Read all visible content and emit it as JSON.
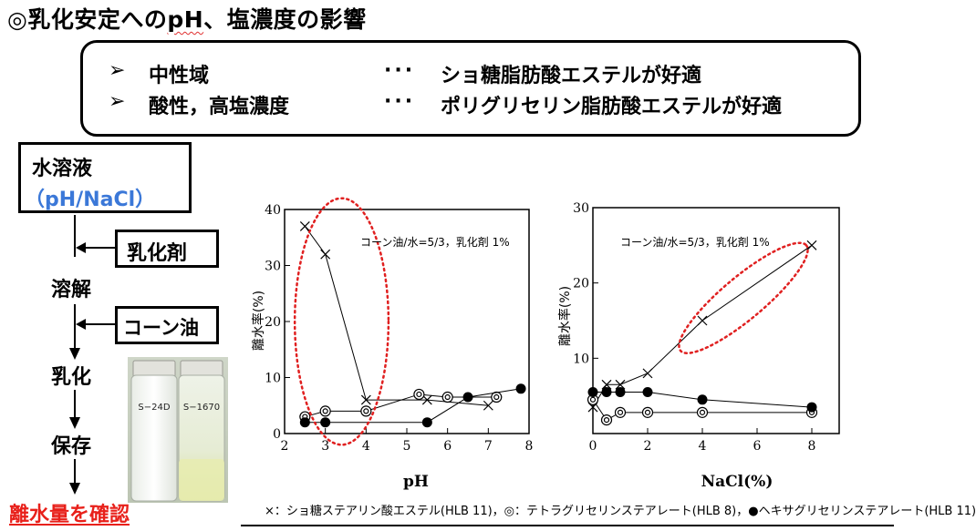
{
  "title": {
    "prefix": "◎乳化安定への",
    "ph": "pH",
    "suffix": "、塩濃度の影響"
  },
  "summary": {
    "rows": [
      {
        "bullet": "➢",
        "condition": "中性域",
        "dots": "···",
        "result": "ショ糖脂肪酸エステルが好適"
      },
      {
        "bullet": "➢",
        "condition": "酸性，高塩濃度",
        "dots": "···",
        "result": "ポリグリセリン脂肪酸エステルが好適"
      }
    ]
  },
  "flow": {
    "start_line1": "水溶液",
    "start_line2": "（pH/NaCl）",
    "emulsifier_label": "乳化剤",
    "oil_label": "コーン油",
    "steps": [
      "溶解",
      "乳化",
      "保存"
    ],
    "final": "離水量を確認",
    "vial_labels": [
      "S−24D",
      "S−1670"
    ]
  },
  "colors": {
    "accent_blue": "#3b78d8",
    "final_red": "#e8201a",
    "highlight_red": "#e02020"
  },
  "chart_data": [
    {
      "type": "line",
      "xlabel": "pH",
      "ylabel": "離水率(%)",
      "annotation": "コーン油/水=5/3，乳化剤 1%",
      "xlim": [
        2,
        8
      ],
      "ylim": [
        0,
        40
      ],
      "xticks": [
        2,
        3,
        4,
        5,
        6,
        7,
        8
      ],
      "yticks": [
        0,
        10,
        20,
        30,
        40
      ],
      "series": [
        {
          "marker": "cross",
          "x": [
            2.5,
            3,
            4,
            5.5,
            7
          ],
          "y": [
            37,
            32,
            6,
            6,
            5
          ]
        },
        {
          "marker": "double-circle",
          "x": [
            2.5,
            3,
            4,
            5.3,
            6,
            7.2
          ],
          "y": [
            3,
            4,
            4,
            7,
            6.5,
            6.5
          ]
        },
        {
          "marker": "filled-circle",
          "x": [
            2.5,
            3,
            5.5,
            6.5,
            7.8
          ],
          "y": [
            2,
            2,
            2,
            6.5,
            8
          ]
        }
      ],
      "highlight": {
        "cx": 3.4,
        "cy": 20,
        "rx": 1.15,
        "ry": 22
      }
    },
    {
      "type": "line",
      "xlabel": "NaCl(%)",
      "ylabel": "離水率(%)",
      "annotation": "コーン油/水=5/3，乳化剤 1%",
      "xlim": [
        0,
        9
      ],
      "ylim": [
        0,
        30
      ],
      "xticks": [
        0,
        2,
        4,
        6,
        8
      ],
      "yticks": [
        10,
        20,
        30
      ],
      "series": [
        {
          "marker": "cross",
          "x": [
            0,
            0.5,
            1,
            2,
            4,
            8
          ],
          "y": [
            3.5,
            6.5,
            6.5,
            8,
            15,
            25
          ]
        },
        {
          "marker": "double-circle",
          "x": [
            0,
            0.5,
            1,
            2,
            4,
            8
          ],
          "y": [
            4.5,
            1.8,
            2.8,
            2.8,
            2.8,
            2.8
          ]
        },
        {
          "marker": "filled-circle",
          "x": [
            0,
            0.5,
            1,
            2,
            4,
            8
          ],
          "y": [
            5.5,
            5.5,
            5.5,
            5.5,
            4.5,
            3.5
          ]
        }
      ],
      "highlight": {
        "cx": 5.5,
        "cy": 18,
        "rx": 3.0,
        "ry": 8,
        "angle": 40
      }
    }
  ],
  "legend": {
    "items": [
      {
        "marker": "×",
        "text": "：ショ糖ステアリン酸エステル(HLB 11)，"
      },
      {
        "marker": "◎",
        "text": "：テトラグリセリンステアレート(HLB 8)，"
      },
      {
        "marker": "●",
        "text": "ヘキサグリセリンステアレート(HLB 11)"
      }
    ]
  }
}
